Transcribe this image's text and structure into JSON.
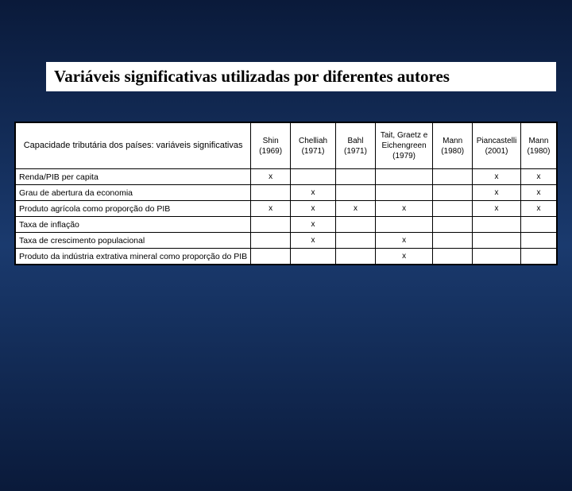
{
  "title": "Variáveis significativas utilizadas por diferentes autores",
  "columns": [
    "Capacidade tributária dos países: variáveis significativas",
    "Shin (1969)",
    "Chelliah (1971)",
    "Bahl (1971)",
    "Tait, Graetz e Eichengreen (1979)",
    "Mann (1980)",
    "Piancastelli (2001)",
    "Mann (1980)"
  ],
  "rows": [
    {
      "label": "Renda/PIB per capita",
      "marks": [
        "x",
        "",
        "",
        "",
        "",
        "x",
        "x"
      ]
    },
    {
      "label": "Grau de abertura da economia",
      "marks": [
        "",
        "x",
        "",
        "",
        "",
        "x",
        "x"
      ]
    },
    {
      "label": "Produto agrícola como proporção do PIB",
      "marks": [
        "x",
        "x",
        "x",
        "x",
        "",
        "x",
        "x"
      ]
    },
    {
      "label": "Taxa de inflação",
      "marks": [
        "",
        "x",
        "",
        "",
        "",
        "",
        ""
      ]
    },
    {
      "label": "Taxa de crescimento populacional",
      "marks": [
        "",
        "x",
        "",
        "x",
        "",
        "",
        ""
      ]
    },
    {
      "label": "Produto da indústria extrativa mineral como proporção do PIB",
      "marks": [
        "",
        "",
        "",
        "x",
        "",
        "",
        ""
      ]
    }
  ],
  "col_widths": [
    "40%",
    "8%",
    "9%",
    "8%",
    "11%",
    "8%",
    "9%",
    "8%"
  ],
  "colors": {
    "background_gradient_top": "#0a1a3a",
    "background_gradient_mid": "#1a3a6e",
    "table_bg": "#ffffff",
    "border": "#000000",
    "text": "#000000"
  }
}
